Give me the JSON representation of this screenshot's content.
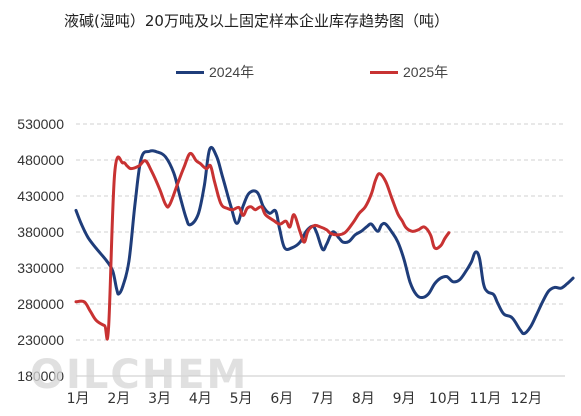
{
  "chart_data": {
    "type": "line",
    "title": "液碱(湿吨）20万吨及以上固定样本企业库存趋势图（吨）",
    "xlabel": "",
    "ylabel": "",
    "ylim": [
      180000,
      530000
    ],
    "yticks": [
      530000,
      480000,
      430000,
      380000,
      330000,
      280000,
      230000,
      180000
    ],
    "ytick_labels": [
      "530000",
      "480000",
      "430000",
      "380000",
      "330000",
      "280000",
      "230000",
      "180000"
    ],
    "xlim": [
      0,
      12
    ],
    "xtick_labels": [
      "1月",
      "2月",
      "3月",
      "4月",
      "5月",
      "6月",
      "7月",
      "8月",
      "9月",
      "10月",
      "11月",
      "12月"
    ],
    "grid": "horizontal-dashed",
    "legend_position": "top-center",
    "series": [
      {
        "name": "2024年",
        "color": "#1f3d7a",
        "points": [
          [
            0.0,
            410000
          ],
          [
            0.14,
            390000
          ],
          [
            0.3,
            372000
          ],
          [
            0.5,
            357000
          ],
          [
            0.75,
            340000
          ],
          [
            0.9,
            326000
          ],
          [
            1.0,
            300000
          ],
          [
            1.05,
            294000
          ],
          [
            1.15,
            305000
          ],
          [
            1.3,
            340000
          ],
          [
            1.45,
            420000
          ],
          [
            1.6,
            482000
          ],
          [
            1.8,
            492000
          ],
          [
            2.0,
            491000
          ],
          [
            2.2,
            484000
          ],
          [
            2.4,
            462000
          ],
          [
            2.55,
            430000
          ],
          [
            2.7,
            400000
          ],
          [
            2.8,
            390000
          ],
          [
            3.0,
            405000
          ],
          [
            3.15,
            445000
          ],
          [
            3.28,
            495000
          ],
          [
            3.45,
            485000
          ],
          [
            3.6,
            456000
          ],
          [
            3.8,
            416000
          ],
          [
            3.95,
            392000
          ],
          [
            4.1,
            416000
          ],
          [
            4.25,
            434000
          ],
          [
            4.45,
            435000
          ],
          [
            4.6,
            415000
          ],
          [
            4.75,
            406000
          ],
          [
            4.9,
            409000
          ],
          [
            5.0,
            383000
          ],
          [
            5.12,
            358000
          ],
          [
            5.3,
            358000
          ],
          [
            5.5,
            366000
          ],
          [
            5.65,
            381000
          ],
          [
            5.8,
            388000
          ],
          [
            5.9,
            380000
          ],
          [
            6.05,
            356000
          ],
          [
            6.15,
            363000
          ],
          [
            6.3,
            380000
          ],
          [
            6.45,
            372000
          ],
          [
            6.55,
            366000
          ],
          [
            6.7,
            367000
          ],
          [
            6.85,
            376000
          ],
          [
            7.0,
            381000
          ],
          [
            7.15,
            388000
          ],
          [
            7.25,
            391000
          ],
          [
            7.4,
            381000
          ],
          [
            7.5,
            390000
          ],
          [
            7.6,
            391000
          ],
          [
            7.75,
            380000
          ],
          [
            7.9,
            366000
          ],
          [
            8.05,
            342000
          ],
          [
            8.2,
            310000
          ],
          [
            8.35,
            293000
          ],
          [
            8.5,
            289000
          ],
          [
            8.65,
            294000
          ],
          [
            8.8,
            308000
          ],
          [
            8.95,
            316000
          ],
          [
            9.1,
            318000
          ],
          [
            9.25,
            311000
          ],
          [
            9.4,
            313000
          ],
          [
            9.55,
            324000
          ],
          [
            9.7,
            338000
          ],
          [
            9.8,
            352000
          ],
          [
            9.9,
            344000
          ],
          [
            10.0,
            308000
          ],
          [
            10.1,
            297000
          ],
          [
            10.25,
            293000
          ],
          [
            10.35,
            281000
          ],
          [
            10.5,
            266000
          ],
          [
            10.7,
            261000
          ],
          [
            10.9,
            244000
          ],
          [
            11.0,
            239000
          ],
          [
            11.15,
            248000
          ],
          [
            11.3,
            265000
          ],
          [
            11.45,
            283000
          ],
          [
            11.6,
            298000
          ],
          [
            11.75,
            303000
          ],
          [
            11.9,
            302000
          ],
          [
            12.05,
            308000
          ],
          [
            12.2,
            316000
          ]
        ]
      },
      {
        "name": "2025年",
        "color": "#c83232",
        "points": [
          [
            0.0,
            283000
          ],
          [
            0.2,
            283000
          ],
          [
            0.35,
            270000
          ],
          [
            0.5,
            257000
          ],
          [
            0.7,
            250000
          ],
          [
            0.8,
            248000
          ],
          [
            0.95,
            462000
          ],
          [
            1.15,
            476000
          ],
          [
            1.25,
            472000
          ],
          [
            1.35,
            468000
          ],
          [
            1.55,
            472000
          ],
          [
            1.7,
            479000
          ],
          [
            1.85,
            465000
          ],
          [
            2.05,
            440000
          ],
          [
            2.2,
            418000
          ],
          [
            2.3,
            418000
          ],
          [
            2.5,
            448000
          ],
          [
            2.65,
            470000
          ],
          [
            2.8,
            489000
          ],
          [
            2.95,
            479000
          ],
          [
            3.05,
            475000
          ],
          [
            3.2,
            468000
          ],
          [
            3.3,
            472000
          ],
          [
            3.4,
            450000
          ],
          [
            3.55,
            420000
          ],
          [
            3.7,
            413000
          ],
          [
            3.85,
            411000
          ],
          [
            4.0,
            414000
          ],
          [
            4.1,
            403000
          ],
          [
            4.2,
            413000
          ],
          [
            4.3,
            415000
          ],
          [
            4.4,
            411000
          ],
          [
            4.55,
            415000
          ],
          [
            4.65,
            404000
          ],
          [
            4.85,
            396000
          ],
          [
            5.0,
            391000
          ],
          [
            5.15,
            395000
          ],
          [
            5.25,
            387000
          ],
          [
            5.35,
            404000
          ],
          [
            5.5,
            380000
          ],
          [
            5.6,
            366000
          ],
          [
            5.7,
            382000
          ],
          [
            5.85,
            389000
          ],
          [
            6.0,
            387000
          ],
          [
            6.15,
            383000
          ],
          [
            6.25,
            378000
          ],
          [
            6.4,
            376000
          ],
          [
            6.6,
            379000
          ],
          [
            6.8,
            393000
          ],
          [
            6.95,
            406000
          ],
          [
            7.1,
            415000
          ],
          [
            7.25,
            433000
          ],
          [
            7.35,
            452000
          ],
          [
            7.45,
            461000
          ],
          [
            7.6,
            450000
          ],
          [
            7.75,
            427000
          ],
          [
            7.9,
            405000
          ],
          [
            8.0,
            396000
          ],
          [
            8.1,
            386000
          ],
          [
            8.25,
            381000
          ],
          [
            8.4,
            383000
          ],
          [
            8.55,
            387000
          ],
          [
            8.7,
            376000
          ],
          [
            8.8,
            358000
          ],
          [
            8.95,
            361000
          ],
          [
            9.05,
            371000
          ],
          [
            9.15,
            379000
          ]
        ]
      }
    ]
  },
  "watermark": "OILCHEM"
}
